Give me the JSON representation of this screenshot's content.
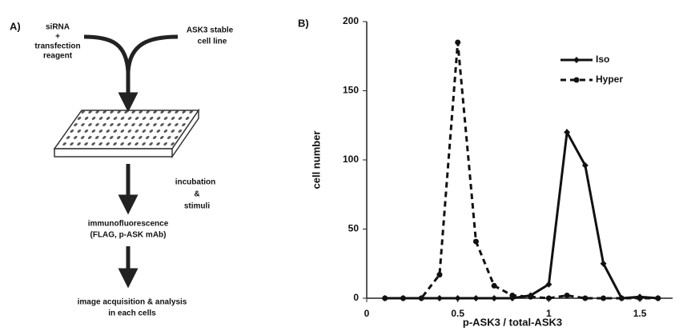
{
  "diagram": {
    "panel_label": "A)",
    "reagent": [
      "siRNA",
      "+",
      "transfection",
      "reagent"
    ],
    "cell_line": [
      "ASK3 stable",
      "cell line"
    ],
    "step1": [
      "incubation",
      "&",
      "stimuli"
    ],
    "step2": [
      "immunofluorescence",
      "(FLAG, p-ASK mAb)"
    ],
    "step3": [
      "image acquisition & analysis",
      "in each cells"
    ]
  },
  "chart_data": {
    "type": "line",
    "panel_label": "B)",
    "x_label": "p-ASK3 / total-ASK3",
    "y_label": "cell number",
    "x": [
      0.1,
      0.2,
      0.3,
      0.4,
      0.5,
      0.6,
      0.7,
      0.8,
      0.9,
      1.0,
      1.1,
      1.2,
      1.3,
      1.4,
      1.5,
      1.6
    ],
    "series": [
      {
        "name": "Iso",
        "color": "#111111",
        "line_style": "solid",
        "marker": "diamond",
        "values": [
          0,
          0,
          0,
          0,
          0,
          0,
          0,
          0,
          2,
          10,
          120,
          96,
          25,
          0,
          1,
          0
        ]
      },
      {
        "name": "Hyper",
        "color": "#111111",
        "line_style": "dashed",
        "marker": "circle",
        "values": [
          0,
          0,
          0,
          17,
          185,
          41,
          9,
          2,
          1,
          0,
          2,
          0,
          0,
          0,
          0,
          0
        ]
      }
    ],
    "xlim": [
      0,
      1.68
    ],
    "xticks": [
      0,
      0.5,
      1,
      1.5
    ],
    "ylim": [
      0,
      200
    ],
    "yticks": [
      0,
      50,
      100,
      150,
      200
    ],
    "legend": "upper right"
  }
}
